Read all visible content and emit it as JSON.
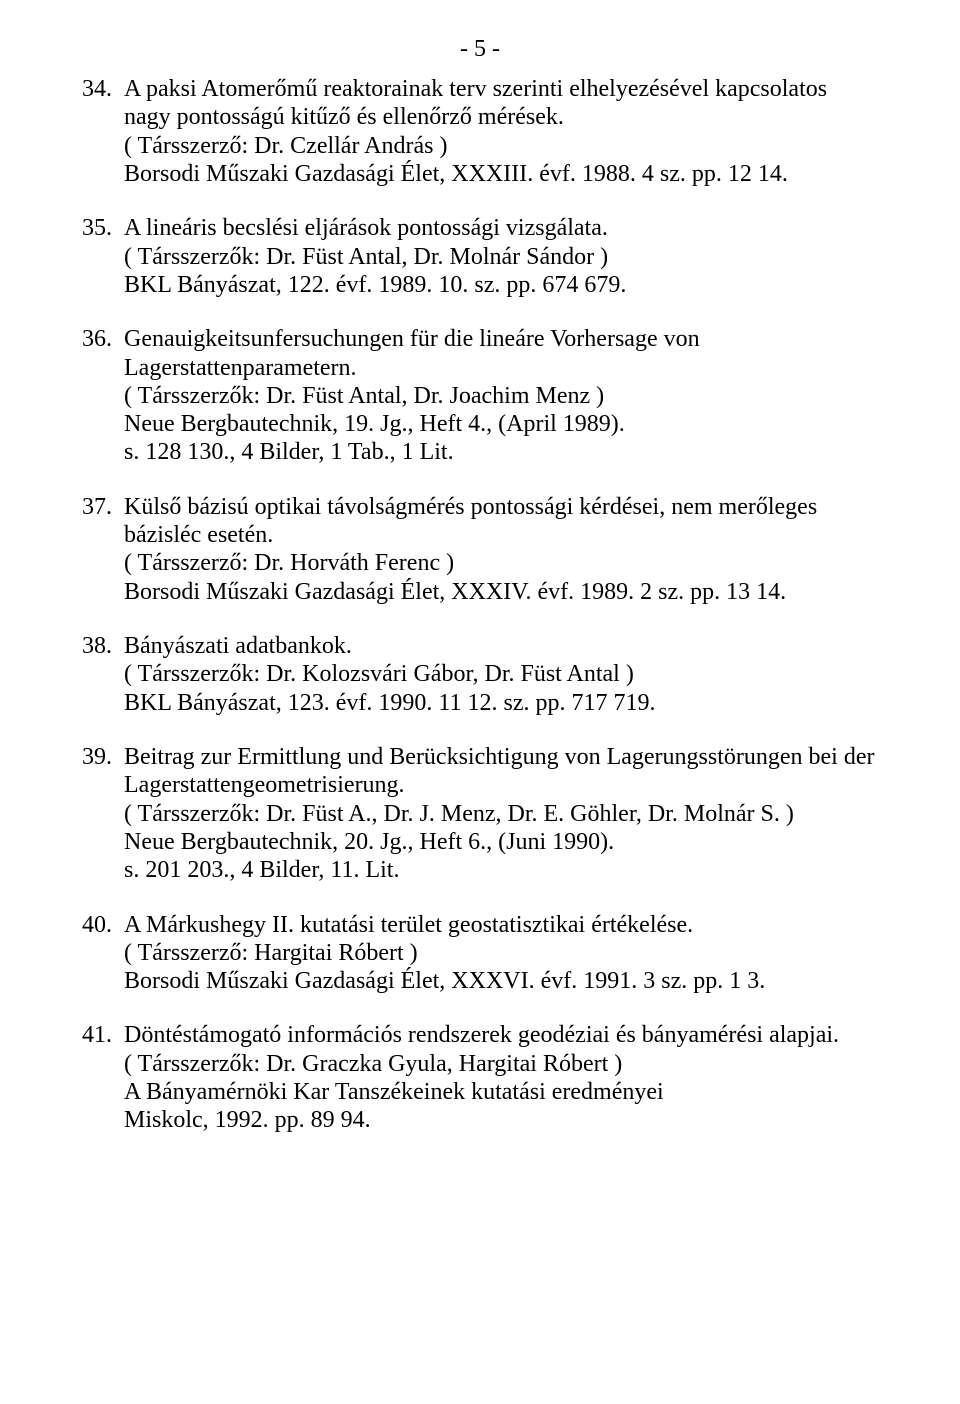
{
  "page_number": "- 5 -",
  "entries": [
    {
      "num": "34.",
      "title": "A paksi Atomerőmű reaktorainak terv szerinti elhelyezésével kapcsolatos nagy pontosságú kitűző és ellenőrző mérések.",
      "lines": [
        "( Társszerző: Dr. Czellár András )",
        "Borsodi Műszaki Gazdasági Élet, XXXIII. évf. 1988. 4 sz. pp. 12 14."
      ]
    },
    {
      "num": "35.",
      "title": "A lineáris becslési eljárások pontossági vizsgálata.",
      "lines": [
        "( Társszerzők: Dr. Füst Antal, Dr. Molnár Sándor )",
        "BKL Bányászat, 122. évf. 1989. 10. sz. pp. 674 679."
      ]
    },
    {
      "num": "36.",
      "title": "Genauigkeitsunfersuchungen für die lineáre Vorhersage von Lagerstattenparametern.",
      "lines": [
        "( Társszerzők: Dr. Füst Antal, Dr. Joachim Menz )",
        "Neue Bergbautechnik, 19. Jg., Heft 4., (April 1989).",
        "s. 128 130., 4 Bilder, 1 Tab., 1 Lit."
      ]
    },
    {
      "num": "37.",
      "title": "Külső bázisú optikai távolságmérés pontossági kérdései, nem merőleges bázisléc esetén.",
      "lines": [
        "( Társszerző: Dr. Horváth Ferenc )",
        "Borsodi Műszaki Gazdasági Élet, XXXIV. évf. 1989. 2 sz. pp. 13 14."
      ]
    },
    {
      "num": "38.",
      "title": "Bányászati adatbankok.",
      "lines": [
        "( Társszerzők: Dr. Kolozsvári Gábor, Dr. Füst Antal )",
        "BKL Bányászat, 123. évf. 1990. 11 12. sz. pp. 717 719."
      ]
    },
    {
      "num": "39.",
      "title": "Beitrag zur Ermittlung und Berücksichtigung von Lagerungsstörungen bei der Lagerstattengeometrisierung.",
      "lines": [
        "( Társszerzők: Dr. Füst A., Dr. J. Menz, Dr. E. Göhler, Dr. Molnár S. )",
        "Neue Bergbautechnik, 20. Jg., Heft 6., (Juni 1990).",
        "s. 201 203., 4 Bilder, 11. Lit."
      ]
    },
    {
      "num": "40.",
      "title": "A Márkushegy II. kutatási terület geostatisztikai értékelése.",
      "lines": [
        "( Társszerző: Hargitai Róbert )",
        "Borsodi Műszaki Gazdasági Élet, XXXVI. évf. 1991. 3 sz. pp. 1 3."
      ]
    },
    {
      "num": "41.",
      "title": "Döntéstámogató információs rendszerek geodéziai és bányamérési alapjai.",
      "lines": [
        "( Társszerzők: Dr. Graczka Gyula, Hargitai Róbert )",
        "A Bányamérnöki Kar Tanszékeinek kutatási eredményei",
        "Miskolc, 1992. pp. 89 94."
      ]
    }
  ]
}
